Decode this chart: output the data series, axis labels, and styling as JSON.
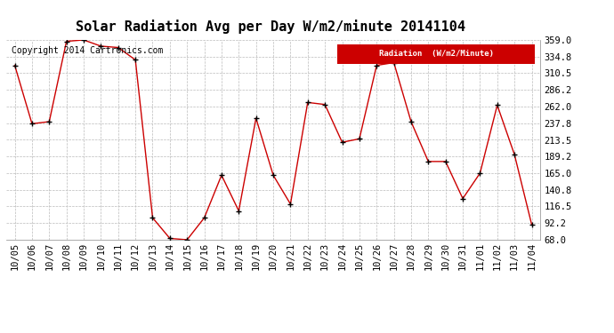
{
  "title": "Solar Radiation Avg per Day W/m2/minute 20141104",
  "copyright": "Copyright 2014 Cartronics.com",
  "legend_label": "Radiation  (W/m2/Minute)",
  "x_labels": [
    "10/05",
    "10/06",
    "10/07",
    "10/08",
    "10/09",
    "10/10",
    "10/11",
    "10/12",
    "10/13",
    "10/14",
    "10/15",
    "10/16",
    "10/17",
    "10/18",
    "10/19",
    "10/20",
    "10/21",
    "10/22",
    "10/23",
    "10/24",
    "10/25",
    "10/26",
    "10/27",
    "10/28",
    "10/29",
    "10/30",
    "10/31",
    "11/01",
    "11/02",
    "11/03",
    "11/04"
  ],
  "y_values": [
    322,
    237,
    240,
    357,
    359,
    350,
    348,
    330,
    100,
    70,
    68,
    100,
    162,
    110,
    245,
    162,
    120,
    268,
    265,
    210,
    215,
    322,
    326,
    240,
    182,
    182,
    128,
    165,
    264,
    192,
    90
  ],
  "y_ticks": [
    68.0,
    92.2,
    116.5,
    140.8,
    165.0,
    189.2,
    213.5,
    237.8,
    262.0,
    286.2,
    310.5,
    334.8,
    359.0
  ],
  "ylim": [
    68.0,
    359.0
  ],
  "line_color": "#cc0000",
  "marker_color": "#000000",
  "bg_color": "#ffffff",
  "grid_color": "#bbbbbb",
  "legend_bg": "#cc0000",
  "legend_text_color": "#ffffff",
  "title_fontsize": 11,
  "copyright_fontsize": 7,
  "tick_fontsize": 7.5
}
